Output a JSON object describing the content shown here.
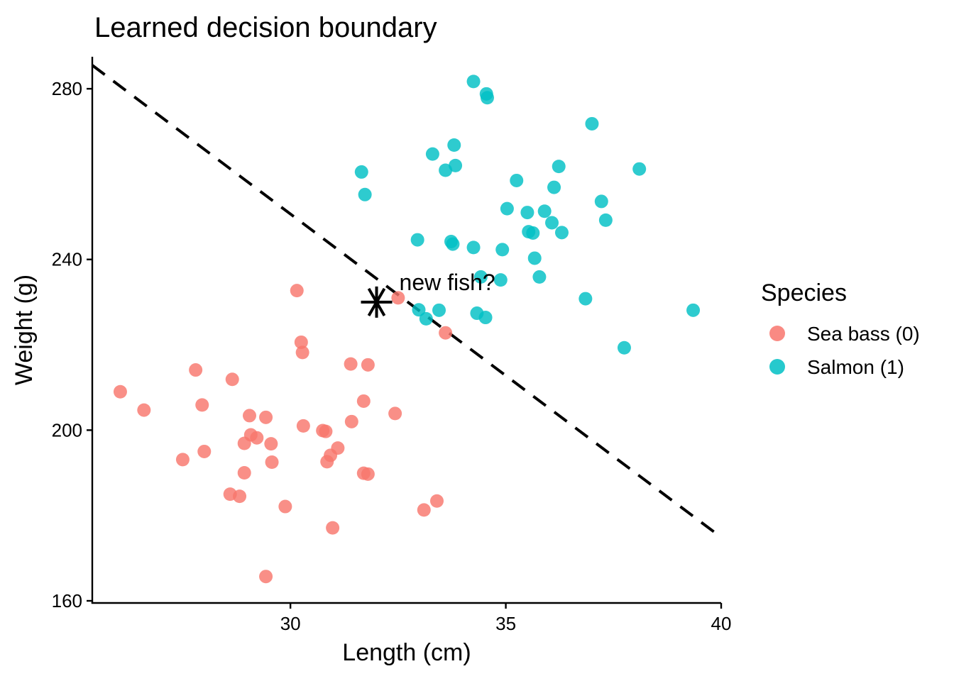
{
  "chart_data": {
    "type": "scatter",
    "title": "Learned decision boundary",
    "xlabel": "Length (cm)",
    "ylabel": "Weight (g)",
    "xlim": [
      25.4,
      40
    ],
    "ylim": [
      159.5,
      287.5
    ],
    "xticks": [
      30,
      35,
      40
    ],
    "yticks": [
      160,
      200,
      240,
      280
    ],
    "grid": false,
    "legend": {
      "title": "Species",
      "placement": "right"
    },
    "series": [
      {
        "name": "Sea bass (0)",
        "color": "#F8766D",
        "points": [
          [
            30.15,
            232.7
          ],
          [
            32.5,
            231.0
          ],
          [
            33.6,
            222.8
          ],
          [
            30.25,
            220.6
          ],
          [
            30.28,
            218.2
          ],
          [
            27.8,
            214.1
          ],
          [
            28.65,
            211.9
          ],
          [
            31.4,
            215.5
          ],
          [
            31.8,
            215.3
          ],
          [
            26.05,
            209.0
          ],
          [
            26.6,
            204.7
          ],
          [
            27.95,
            205.9
          ],
          [
            31.7,
            206.8
          ],
          [
            32.43,
            203.9
          ],
          [
            29.05,
            203.4
          ],
          [
            29.43,
            203.0
          ],
          [
            30.3,
            201.0
          ],
          [
            31.42,
            202.0
          ],
          [
            30.75,
            199.9
          ],
          [
            30.82,
            199.7
          ],
          [
            29.08,
            198.9
          ],
          [
            29.22,
            198.2
          ],
          [
            28.93,
            196.9
          ],
          [
            29.55,
            196.8
          ],
          [
            31.1,
            195.8
          ],
          [
            30.93,
            194.1
          ],
          [
            28.0,
            195.0
          ],
          [
            27.5,
            193.1
          ],
          [
            30.85,
            192.6
          ],
          [
            29.57,
            192.5
          ],
          [
            28.93,
            190.0
          ],
          [
            31.7,
            189.9
          ],
          [
            31.8,
            189.7
          ],
          [
            28.6,
            185.0
          ],
          [
            28.82,
            184.5
          ],
          [
            29.88,
            182.1
          ],
          [
            33.4,
            183.4
          ],
          [
            33.1,
            181.3
          ],
          [
            30.98,
            177.1
          ],
          [
            29.43,
            165.7
          ]
        ]
      },
      {
        "name": "Salmon (1)",
        "color": "#00BFC4",
        "points": [
          [
            34.25,
            281.7
          ],
          [
            34.55,
            278.8
          ],
          [
            34.57,
            277.9
          ],
          [
            37.0,
            271.8
          ],
          [
            33.8,
            266.8
          ],
          [
            33.3,
            264.7
          ],
          [
            33.83,
            262.0
          ],
          [
            33.6,
            260.9
          ],
          [
            36.23,
            261.8
          ],
          [
            31.65,
            260.5
          ],
          [
            38.1,
            261.2
          ],
          [
            35.25,
            258.5
          ],
          [
            36.12,
            256.9
          ],
          [
            31.73,
            255.2
          ],
          [
            37.22,
            253.6
          ],
          [
            35.03,
            251.9
          ],
          [
            35.9,
            251.3
          ],
          [
            35.5,
            251.0
          ],
          [
            37.32,
            249.2
          ],
          [
            36.07,
            248.6
          ],
          [
            35.53,
            246.5
          ],
          [
            35.63,
            246.2
          ],
          [
            36.3,
            246.3
          ],
          [
            32.95,
            244.6
          ],
          [
            33.73,
            244.2
          ],
          [
            33.77,
            243.6
          ],
          [
            34.25,
            242.8
          ],
          [
            34.92,
            242.3
          ],
          [
            35.67,
            240.3
          ],
          [
            34.42,
            235.9
          ],
          [
            34.88,
            235.2
          ],
          [
            35.78,
            235.9
          ],
          [
            36.85,
            230.8
          ],
          [
            32.98,
            228.2
          ],
          [
            33.45,
            228.1
          ],
          [
            34.33,
            227.4
          ],
          [
            34.53,
            226.4
          ],
          [
            33.15,
            226.1
          ],
          [
            39.35,
            228.1
          ],
          [
            37.75,
            219.3
          ]
        ]
      }
    ],
    "decision_boundary": {
      "style": "dashed",
      "points": [
        [
          25.4,
          285.5
        ],
        [
          40,
          174.9
        ]
      ]
    },
    "annotation": {
      "text": "new fish?",
      "x": 32.0,
      "y": 230.0,
      "marker": "asterisk"
    }
  }
}
